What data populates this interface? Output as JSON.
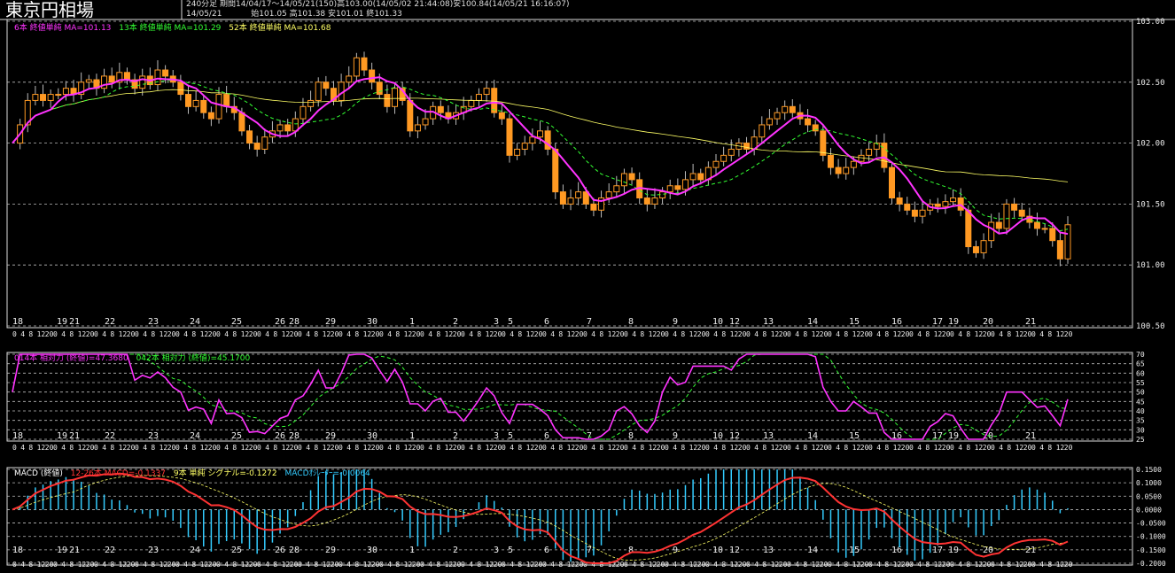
{
  "header": {
    "title": "東京円相場",
    "period_line": "240分足  期間14/04/17～14/05/21(150)高103.00(14/05/02 21:44:08)安100.84(14/05/21 16:16:07)",
    "date": "14/05/21",
    "ohlc_line": "始101.05 高101.38 安101.01 終101.33"
  },
  "legend_main": [
    {
      "text": "6本 終値単純 MA=101.13",
      "color": "#ff33ff"
    },
    {
      "text": "13本 終値単純 MA=101.29",
      "color": "#33ff33"
    },
    {
      "text": "52本 終値単純 MA=101.68",
      "color": "#ffff66"
    }
  ],
  "legend_rsi": [
    {
      "text": "014本 相対力 (終値)=47.3680",
      "color": "#ff33ff"
    },
    {
      "text": "042本 相対力 (終値)=45.1700",
      "color": "#33ff33"
    }
  ],
  "legend_macd": [
    {
      "text": "MACD (終値)",
      "color": "#ffffff"
    },
    {
      "text": "12-26本 MACD=-0.1337",
      "color": "#ff3333"
    },
    {
      "text": "9本 単純 シグナル=-0.1272",
      "color": "#ffff66"
    },
    {
      "text": "MACDｵｼﾚｰﾀｰ=-0.0064",
      "color": "#33ccff"
    }
  ],
  "chart_data": [
    {
      "type": "candlestick",
      "ylim": [
        100.5,
        103.0
      ],
      "y_ticks": [
        "103.00",
        "102.50",
        "102.00",
        "101.50",
        "101.00",
        "100.50"
      ],
      "date_labels": [
        "18",
        "19",
        "21",
        "22",
        "23",
        "24",
        "25",
        "26",
        "28",
        "29",
        "30",
        "1",
        "2",
        "3",
        "5",
        "6",
        "7",
        "8",
        "9",
        "10",
        "12",
        "13",
        "14",
        "15",
        "16",
        "17",
        "19",
        "20",
        "21"
      ],
      "hour_labels": [
        "0",
        "4",
        "8",
        "12",
        "20"
      ],
      "closes": [
        102.0,
        102.15,
        102.35,
        102.4,
        102.35,
        102.4,
        102.4,
        102.45,
        102.4,
        102.5,
        102.52,
        102.45,
        102.55,
        102.5,
        102.58,
        102.52,
        102.45,
        102.55,
        102.48,
        102.6,
        102.55,
        102.5,
        102.4,
        102.3,
        102.35,
        102.25,
        102.2,
        102.4,
        102.3,
        102.25,
        102.1,
        102.0,
        101.95,
        102.05,
        102.1,
        102.15,
        102.1,
        102.2,
        102.3,
        102.35,
        102.5,
        102.45,
        102.35,
        102.5,
        102.55,
        102.7,
        102.6,
        102.5,
        102.4,
        102.3,
        102.45,
        102.35,
        102.1,
        102.15,
        102.2,
        102.3,
        102.25,
        102.2,
        102.25,
        102.3,
        102.35,
        102.4,
        102.45,
        102.25,
        102.2,
        101.9,
        101.95,
        102.0,
        102.05,
        102.1,
        101.95,
        101.6,
        101.5,
        101.55,
        101.6,
        101.5,
        101.45,
        101.55,
        101.6,
        101.65,
        101.75,
        101.7,
        101.55,
        101.5,
        101.55,
        101.6,
        101.65,
        101.62,
        101.7,
        101.75,
        101.7,
        101.8,
        101.85,
        101.9,
        101.95,
        102.0,
        101.95,
        102.05,
        102.15,
        102.2,
        102.25,
        102.3,
        102.25,
        102.2,
        102.15,
        102.1,
        101.9,
        101.8,
        101.75,
        101.8,
        101.85,
        101.9,
        101.95,
        102.0,
        101.8,
        101.55,
        101.5,
        101.45,
        101.4,
        101.45,
        101.5,
        101.48,
        101.52,
        101.55,
        101.45,
        101.15,
        101.1,
        101.2,
        101.35,
        101.3,
        101.5,
        101.45,
        101.4,
        101.35,
        101.3,
        101.3,
        101.2,
        101.05,
        101.33
      ]
    },
    {
      "type": "line",
      "name_note": "RSI",
      "ylim": [
        25,
        70
      ],
      "y_ticks": [
        "70",
        "65",
        "60",
        "55",
        "50",
        "45",
        "40",
        "35",
        "30",
        "25"
      ]
    },
    {
      "type": "line",
      "name_note": "MACD",
      "ylim": [
        -0.2,
        0.15
      ],
      "y_ticks": [
        "0.1500",
        "0.1000",
        "0.0500",
        "0.0000",
        "-0.0500",
        "-0.1000",
        "-0.1500",
        "-0.2000"
      ]
    }
  ]
}
